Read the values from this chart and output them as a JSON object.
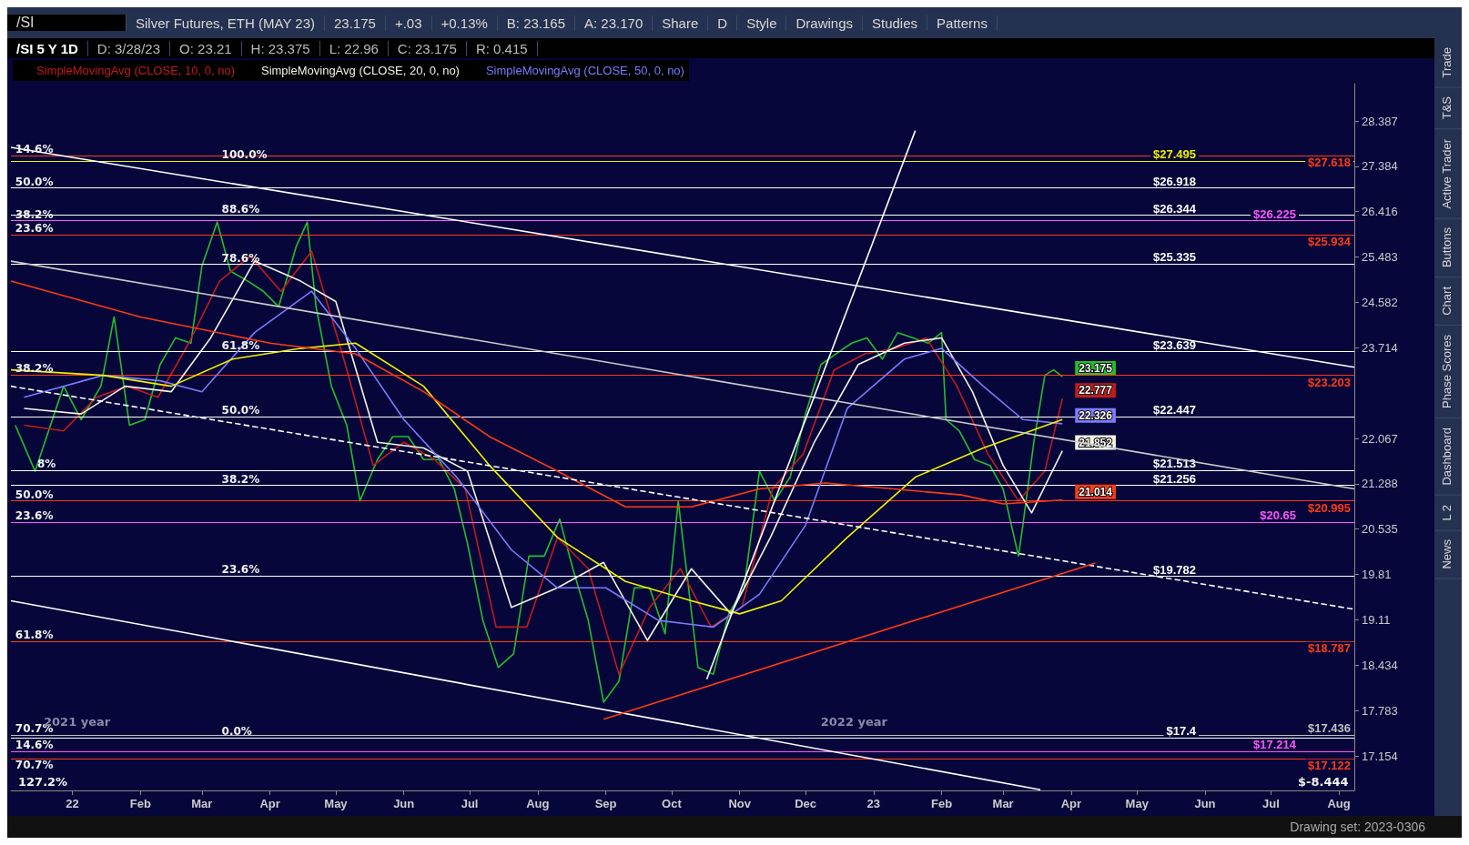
{
  "chart_data": {
    "type": "line",
    "title": "/SI 5 Y 1D",
    "subtitle": "Silver Futures, ETH (MAY 23)",
    "legend": "top left",
    "log": "y",
    "xlim": [
      "2021-12-04",
      "2023-08-08"
    ],
    "xticks": [
      {
        "value": "2022-01-01",
        "label": "22"
      },
      {
        "value": "2022-02-01",
        "label": "Feb"
      },
      {
        "value": "2022-03-01",
        "label": "Mar"
      },
      {
        "value": "2022-04-01",
        "label": "Apr"
      },
      {
        "value": "2022-05-01",
        "label": "May"
      },
      {
        "value": "2022-06-01",
        "label": "Jun"
      },
      {
        "value": "2022-07-01",
        "label": "Jul"
      },
      {
        "value": "2022-08-01",
        "label": "Aug"
      },
      {
        "value": "2022-09-01",
        "label": "Sep"
      },
      {
        "value": "2022-10-01",
        "label": "Oct"
      },
      {
        "value": "2022-11-01",
        "label": "Nov"
      },
      {
        "value": "2022-12-01",
        "label": "Dec"
      },
      {
        "value": "2023-01-01",
        "label": "23"
      },
      {
        "value": "2023-02-01",
        "label": "Feb"
      },
      {
        "value": "2023-03-01",
        "label": "Mar"
      },
      {
        "value": "2023-04-01",
        "label": "Apr"
      },
      {
        "value": "2023-05-01",
        "label": "May"
      },
      {
        "value": "2023-06-01",
        "label": "Jun"
      },
      {
        "value": "2023-07-01",
        "label": "Jul"
      },
      {
        "value": "2023-08-01",
        "label": "Aug"
      }
    ],
    "ylim": [
      16.69,
      29.24
    ],
    "yticks": [
      17.154,
      17.783,
      18.434,
      19.11,
      19.81,
      20.535,
      21.288,
      22.067,
      23.714,
      24.582,
      25.483,
      26.416,
      27.384,
      28.387
    ],
    "series": [
      {
        "color": "#22c02a",
        "x": [
          "2021-12-06",
          "2021-12-15",
          "2021-12-28",
          "2022-01-05",
          "2022-01-14",
          "2022-01-20",
          "2022-01-27",
          "2022-02-03",
          "2022-02-10",
          "2022-02-17",
          "2022-02-24",
          "2022-03-01",
          "2022-03-08",
          "2022-03-14",
          "2022-03-22",
          "2022-03-29",
          "2022-04-05",
          "2022-04-13",
          "2022-04-18",
          "2022-04-22",
          "2022-04-29",
          "2022-05-06",
          "2022-05-12",
          "2022-05-20",
          "2022-05-27",
          "2022-06-03",
          "2022-06-10",
          "2022-06-17",
          "2022-06-24",
          "2022-06-30",
          "2022-07-07",
          "2022-07-14",
          "2022-07-21",
          "2022-07-28",
          "2022-08-04",
          "2022-08-11",
          "2022-08-17",
          "2022-08-24",
          "2022-08-31",
          "2022-09-07",
          "2022-09-14",
          "2022-09-21",
          "2022-09-28",
          "2022-10-04",
          "2022-10-07",
          "2022-10-13",
          "2022-10-20",
          "2022-10-27",
          "2022-11-03",
          "2022-11-10",
          "2022-11-17",
          "2022-11-24",
          "2022-12-01",
          "2022-12-08",
          "2022-12-15",
          "2022-12-22",
          "2022-12-29",
          "2023-01-05",
          "2023-01-12",
          "2023-01-19",
          "2023-01-26",
          "2023-02-01",
          "2023-02-03",
          "2023-02-09",
          "2023-02-16",
          "2023-02-23",
          "2023-03-01",
          "2023-03-08",
          "2023-03-10",
          "2023-03-15",
          "2023-03-20",
          "2023-03-24",
          "2023-03-28"
        ],
        "values": [
          22.3,
          21.5,
          23.0,
          22.4,
          23.0,
          24.3,
          22.3,
          22.4,
          23.4,
          23.9,
          23.8,
          25.3,
          26.2,
          25.2,
          25.0,
          24.8,
          24.5,
          25.7,
          26.2,
          24.5,
          23.0,
          22.3,
          21.0,
          21.7,
          22.1,
          22.1,
          21.7,
          21.7,
          21.2,
          20.3,
          19.1,
          18.4,
          18.6,
          20.1,
          20.1,
          20.7,
          19.9,
          19.1,
          17.9,
          18.2,
          19.6,
          19.6,
          18.9,
          21.0,
          20.1,
          18.4,
          18.3,
          19.2,
          19.6,
          21.5,
          21.0,
          21.4,
          22.5,
          23.4,
          23.6,
          23.8,
          23.9,
          23.5,
          24.0,
          23.9,
          23.8,
          24.0,
          22.4,
          22.2,
          21.7,
          21.6,
          21.2,
          20.1,
          20.6,
          22.0,
          23.2,
          23.3,
          23.175
        ],
        "value_labels": [
          null,
          null,
          null,
          null,
          null,
          null,
          null,
          null,
          null,
          null,
          null,
          null,
          null,
          null,
          null,
          null,
          null,
          null,
          null,
          null,
          null,
          null,
          null,
          null,
          null,
          null,
          null,
          null,
          null,
          null,
          null,
          null,
          null,
          null,
          null,
          null,
          null,
          null,
          null,
          null,
          null,
          null,
          null,
          null,
          null,
          null,
          null,
          null,
          null,
          null,
          null,
          null,
          null,
          null,
          null,
          null,
          null,
          null,
          null,
          null,
          null,
          null,
          null,
          null,
          null,
          null,
          null,
          null,
          null,
          null,
          null,
          null,
          "23.175"
        ]
      },
      {
        "name": "SimpleMovingAvg (CLOSE, 10, 0, no)",
        "color": "#c41a1a",
        "x": [
          "2021-12-10",
          "2021-12-28",
          "2022-01-12",
          "2022-01-26",
          "2022-02-09",
          "2022-02-23",
          "2022-03-09",
          "2022-03-23",
          "2022-04-06",
          "2022-04-20",
          "2022-05-04",
          "2022-05-18",
          "2022-06-01",
          "2022-06-15",
          "2022-06-29",
          "2022-07-13",
          "2022-07-27",
          "2022-08-10",
          "2022-08-24",
          "2022-09-07",
          "2022-09-21",
          "2022-10-05",
          "2022-10-19",
          "2022-11-02",
          "2022-11-16",
          "2022-11-30",
          "2022-12-14",
          "2022-12-28",
          "2023-01-11",
          "2023-01-25",
          "2023-02-08",
          "2023-02-22",
          "2023-03-08",
          "2023-03-20",
          "2023-03-28"
        ],
        "values": [
          22.3,
          22.2,
          22.8,
          23.0,
          22.8,
          23.8,
          25.0,
          25.5,
          24.8,
          25.6,
          23.6,
          21.6,
          22.0,
          21.7,
          21.2,
          19.0,
          19.0,
          20.4,
          19.9,
          18.3,
          19.3,
          19.9,
          19.0,
          19.3,
          21.2,
          21.8,
          23.3,
          23.6,
          23.7,
          23.9,
          23.0,
          21.8,
          21.0,
          21.5,
          22.777
        ],
        "value_labels": [
          null,
          null,
          null,
          null,
          null,
          null,
          null,
          null,
          null,
          null,
          null,
          null,
          null,
          null,
          null,
          null,
          null,
          null,
          null,
          null,
          null,
          null,
          null,
          null,
          null,
          null,
          null,
          null,
          null,
          null,
          null,
          null,
          null,
          null,
          "22.777"
        ]
      },
      {
        "name": "SimpleMovingAvg (CLOSE, 20, 0, no)",
        "color": "#f2f2e6",
        "x": [
          "2021-12-10",
          "2022-01-05",
          "2022-01-25",
          "2022-02-15",
          "2022-03-05",
          "2022-03-25",
          "2022-04-15",
          "2022-05-01",
          "2022-05-20",
          "2022-06-10",
          "2022-06-30",
          "2022-07-20",
          "2022-08-10",
          "2022-08-31",
          "2022-09-20",
          "2022-10-10",
          "2022-10-28",
          "2022-11-15",
          "2022-12-05",
          "2022-12-25",
          "2023-01-15",
          "2023-02-01",
          "2023-02-15",
          "2023-03-01",
          "2023-03-14",
          "2023-03-28"
        ],
        "values": [
          22.6,
          22.5,
          23.0,
          22.9,
          23.9,
          25.4,
          25.0,
          24.6,
          22.0,
          21.9,
          21.5,
          19.3,
          19.6,
          20.0,
          18.8,
          19.9,
          19.2,
          20.4,
          22.0,
          23.4,
          23.8,
          23.9,
          22.9,
          21.6,
          20.8,
          21.852
        ],
        "value_labels": [
          null,
          null,
          null,
          null,
          null,
          null,
          null,
          null,
          null,
          null,
          null,
          null,
          null,
          null,
          null,
          null,
          null,
          null,
          null,
          null,
          null,
          null,
          null,
          null,
          null,
          "21.852"
        ]
      },
      {
        "name": "SimpleMovingAvg (CLOSE, 50, 0, no)",
        "color": "#7b7bff",
        "x": [
          "2021-12-10",
          "2022-01-15",
          "2022-02-10",
          "2022-03-01",
          "2022-03-25",
          "2022-04-20",
          "2022-05-10",
          "2022-06-01",
          "2022-06-25",
          "2022-07-20",
          "2022-08-10",
          "2022-09-01",
          "2022-09-25",
          "2022-10-20",
          "2022-11-10",
          "2022-12-01",
          "2022-12-20",
          "2023-01-15",
          "2023-02-01",
          "2023-02-20",
          "2023-03-10",
          "2023-03-28"
        ],
        "values": [
          22.8,
          23.2,
          23.1,
          22.9,
          24.0,
          24.8,
          23.7,
          22.4,
          21.4,
          20.2,
          19.6,
          19.6,
          19.1,
          19.0,
          19.5,
          20.6,
          22.6,
          23.5,
          23.7,
          23.0,
          22.4,
          22.326
        ],
        "value_labels": [
          null,
          null,
          null,
          null,
          null,
          null,
          null,
          null,
          null,
          null,
          null,
          null,
          null,
          null,
          null,
          null,
          null,
          null,
          null,
          null,
          null,
          "22.326"
        ]
      },
      {
        "color": "#f0f000",
        "x": [
          "2021-12-04",
          "2022-01-15",
          "2022-02-15",
          "2022-03-15",
          "2022-04-15",
          "2022-05-10",
          "2022-06-10",
          "2022-07-10",
          "2022-08-10",
          "2022-09-10",
          "2022-10-10",
          "2022-11-01",
          "2022-11-20",
          "2022-12-20",
          "2023-01-20",
          "2023-02-20",
          "2023-03-28"
        ],
        "values": [
          23.3,
          23.2,
          23.0,
          23.5,
          23.7,
          23.8,
          23.0,
          21.6,
          20.4,
          19.7,
          19.4,
          19.2,
          19.4,
          20.4,
          21.4,
          21.9,
          22.4
        ]
      },
      {
        "color": "#ff3a12",
        "x": [
          "2021-12-04",
          "2022-02-01",
          "2022-04-01",
          "2022-05-10",
          "2022-06-10",
          "2022-07-10",
          "2022-08-10",
          "2022-09-10",
          "2022-10-10",
          "2022-11-10",
          "2022-12-10",
          "2023-01-10",
          "2023-02-10",
          "2023-03-01",
          "2023-03-28"
        ],
        "values": [
          25.0,
          24.3,
          23.8,
          23.6,
          22.9,
          22.1,
          21.5,
          20.9,
          20.9,
          21.2,
          21.3,
          21.2,
          21.1,
          20.95,
          21.014
        ],
        "value_labels": [
          null,
          null,
          null,
          null,
          null,
          null,
          null,
          null,
          null,
          null,
          null,
          null,
          null,
          null,
          "21.014"
        ]
      },
      {
        "color": "#ffffff",
        "line_style": "dashed",
        "x": [
          "2021-12-04",
          "2023-08-08"
        ],
        "values": [
          23.0,
          19.27
        ]
      },
      {
        "color": "#ffffff",
        "x": [
          "2021-12-04",
          "2023-08-08"
        ],
        "values": [
          27.8,
          23.35
        ]
      },
      {
        "color": "#ffffff",
        "x": [
          "2021-12-04",
          "2023-03-18"
        ],
        "values": [
          19.4,
          16.7
        ]
      },
      {
        "color": "#cccccc",
        "x": [
          "2021-12-04",
          "2023-08-08"
        ],
        "values": [
          25.4,
          21.2
        ]
      },
      {
        "color": "#ff3a12",
        "x": [
          "2022-08-31",
          "2023-04-12"
        ],
        "values": [
          17.66,
          19.99
        ]
      },
      {
        "color": "#ffffff",
        "x": [
          "2022-10-17",
          "2023-01-20"
        ],
        "values": [
          18.23,
          28.17
        ]
      }
    ],
    "ref_lines": [
      {
        "axis": "y",
        "value": 27.495,
        "label": "$27.495",
        "color": "#f0f000"
      },
      {
        "axis": "y",
        "value": 27.618,
        "label": "$27.618",
        "color": "#ff3a12"
      },
      {
        "axis": "y",
        "value": 26.918,
        "label": "$26.918",
        "color": "#ffffff"
      },
      {
        "axis": "y",
        "value": 26.344,
        "label": "$26.344",
        "color": "#ffffff"
      },
      {
        "axis": "y",
        "value": 26.225,
        "label": "$26.225",
        "color": "#ff55ff"
      },
      {
        "axis": "y",
        "value": 25.934,
        "label": "$25.934",
        "color": "#ff3a12"
      },
      {
        "axis": "y",
        "value": 25.335,
        "label": "$25.335",
        "color": "#ffffff"
      },
      {
        "axis": "y",
        "value": 23.639,
        "label": "$23.639",
        "color": "#ffffff"
      },
      {
        "axis": "y",
        "value": 23.203,
        "label": "$23.203",
        "color": "#ff3a12"
      },
      {
        "axis": "y",
        "value": 22.447,
        "label": "$22.447",
        "color": "#ffffff"
      },
      {
        "axis": "y",
        "value": 21.513,
        "label": "$21.513",
        "color": "#ffffff"
      },
      {
        "axis": "y",
        "value": 21.256,
        "label": "$21.256",
        "color": "#ffffff"
      },
      {
        "axis": "y",
        "value": 20.995,
        "label": "$20.995",
        "color": "#ff3a12"
      },
      {
        "axis": "y",
        "value": 20.65,
        "label": "$20.65",
        "color": "#ff55ff"
      },
      {
        "axis": "y",
        "value": 19.782,
        "label": "$19.782",
        "color": "#ffffff"
      },
      {
        "axis": "y",
        "value": 18.787,
        "label": "$18.787",
        "color": "#ff3a12"
      },
      {
        "axis": "y",
        "value": 17.4,
        "label": "$17.4",
        "color": "#ffffff"
      },
      {
        "axis": "y",
        "value": 17.436,
        "label": "$17.436",
        "color": "#c0c0c0"
      },
      {
        "axis": "y",
        "value": 17.214,
        "label": "$17.214",
        "color": "#ff55ff"
      },
      {
        "axis": "y",
        "value": 17.122,
        "label": "$17.122",
        "color": "#ff3a12"
      }
    ],
    "annotations": [
      "/SI",
      "23.175",
      "+.03",
      "+0.13%",
      "B: 23.165",
      "A: 23.170",
      "Share",
      "D",
      "Style",
      "Drawings",
      "Studies",
      "Patterns",
      "D: 3/28/23",
      "O: 23.21",
      "H: 23.375",
      "L: 22.96",
      "C: 23.175",
      "R: 0.415",
      "Trade",
      "T&S",
      "Active Trader",
      "Buttons",
      "Chart",
      "Phase Scores",
      "Dashboard",
      "L 2",
      "News",
      "Drawing set: 2023-0306",
      "127.2%",
      "$-8.444",
      "2021 year",
      "2022 year",
      {
        "text": "14.6%",
        "x": "2021-12-06",
        "y": 27.618
      },
      {
        "text": "50.0%",
        "x": "2021-12-06",
        "y": 26.918
      },
      {
        "text": "38.2%",
        "x": "2021-12-06",
        "y": 26.225
      },
      {
        "text": "23.6%",
        "x": "2021-12-06",
        "y": 25.934
      },
      {
        "text": "38.2%",
        "x": "2021-12-06",
        "y": 23.203
      },
      {
        "text": "8%",
        "x": "2021-12-16",
        "y": 21.513
      },
      {
        "text": "50.0%",
        "x": "2021-12-06",
        "y": 20.995
      },
      {
        "text": "23.6%",
        "x": "2021-12-06",
        "y": 20.65
      },
      {
        "text": "61.8%",
        "x": "2021-12-06",
        "y": 18.787
      },
      {
        "text": "70.7%",
        "x": "2021-12-06",
        "y": 17.436
      },
      {
        "text": "14.6%",
        "x": "2021-12-06",
        "y": 17.214
      },
      {
        "text": "70.7%",
        "x": "2021-12-06",
        "y": 17.122
      },
      {
        "text": "100.0%",
        "x": "2022-03-10",
        "y": 27.495
      },
      {
        "text": "88.6%",
        "x": "2022-03-10",
        "y": 26.344
      },
      {
        "text": "78.6%",
        "x": "2022-03-10",
        "y": 25.335
      },
      {
        "text": "61.8%",
        "x": "2022-03-10",
        "y": 23.639
      },
      {
        "text": "50.0%",
        "x": "2022-03-10",
        "y": 22.447
      },
      {
        "text": "38.2%",
        "x": "2022-03-10",
        "y": 21.256
      },
      {
        "text": "23.6%",
        "x": "2022-03-10",
        "y": 19.782
      },
      {
        "text": "0.0%",
        "x": "2022-03-10",
        "y": 17.4
      }
    ]
  }
}
